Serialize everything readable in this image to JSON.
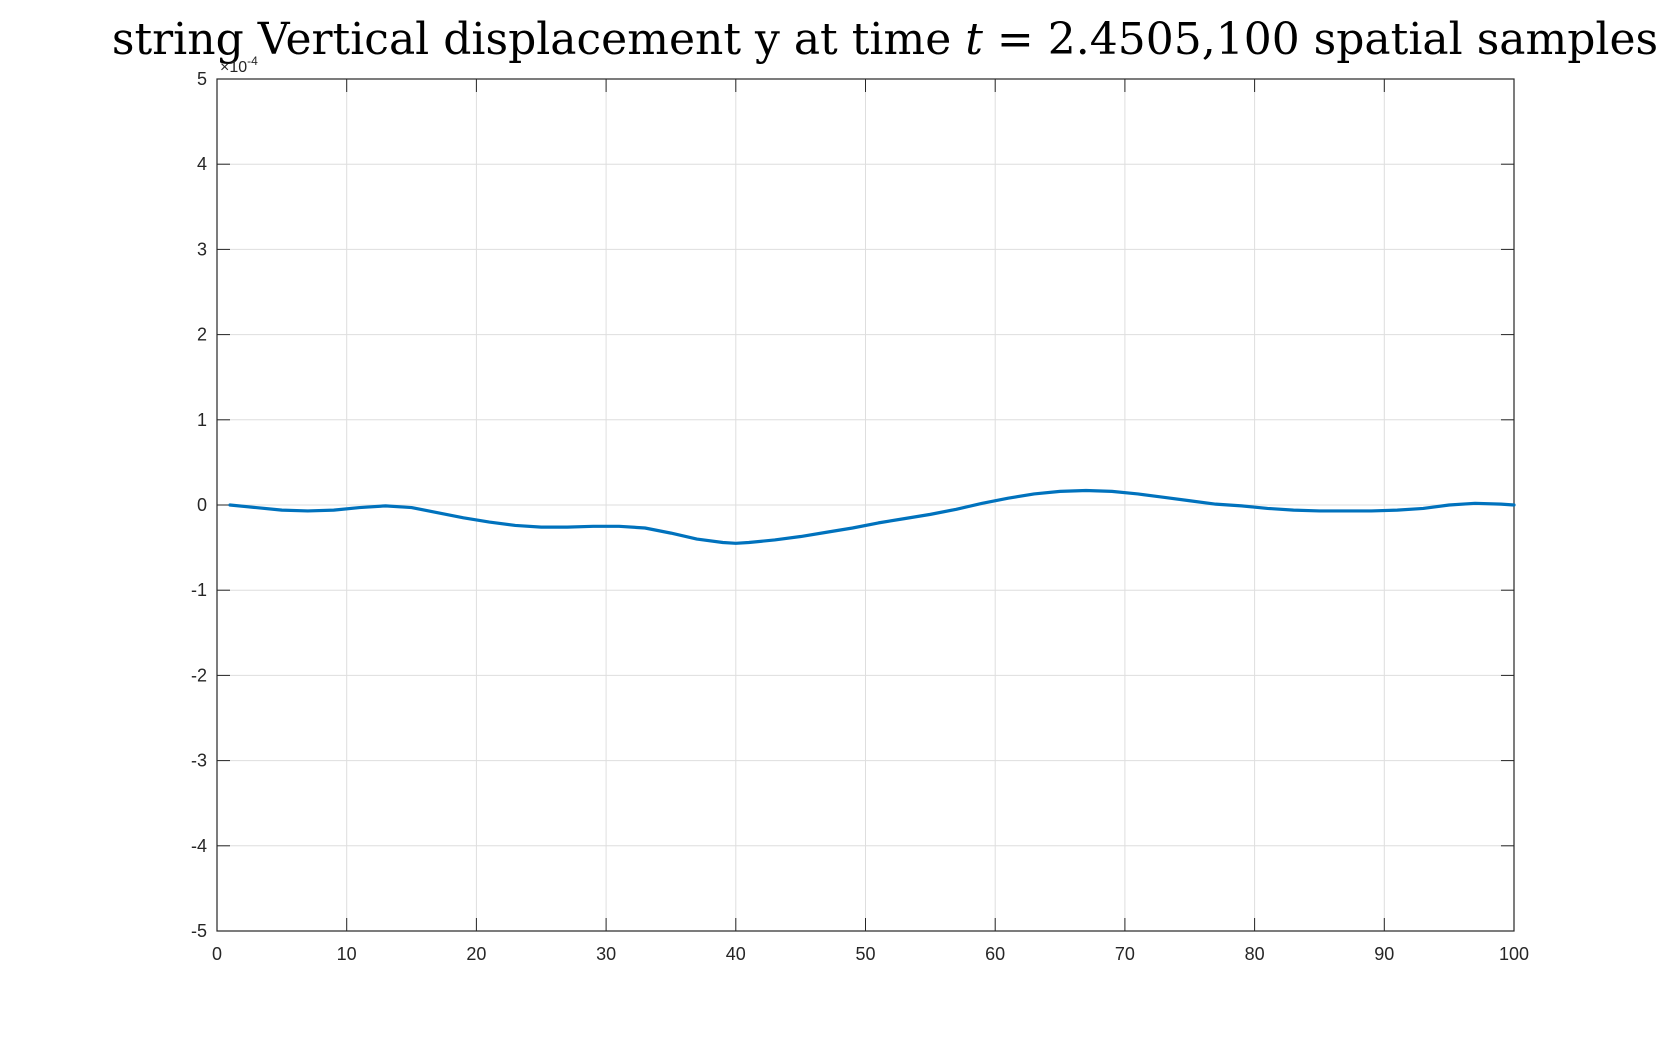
{
  "chart_data": {
    "type": "line",
    "title": "string Vertical displacement y at time t = 2.4505,100 spatial samples",
    "title_parts": {
      "prefix": "string Vertical displacement y at time ",
      "variable": "t",
      "equals": " = ",
      "suffix": "2.4505,100 spatial samples"
    },
    "xlabel": "",
    "ylabel": "",
    "xlim": [
      0,
      100
    ],
    "ylim": [
      -5,
      5
    ],
    "y_exponent_label": "×10",
    "y_exponent_power": "-4",
    "x_ticks": [
      0,
      10,
      20,
      30,
      40,
      50,
      60,
      70,
      80,
      90,
      100
    ],
    "x_tick_labels": [
      "0",
      "10",
      "20",
      "30",
      "40",
      "50",
      "60",
      "70",
      "80",
      "90",
      "100"
    ],
    "y_ticks": [
      5,
      4,
      3,
      2,
      1,
      0,
      -1,
      -2,
      -3,
      -4,
      -5
    ],
    "y_tick_labels": [
      "5",
      "4",
      "3",
      "2",
      "1",
      "0",
      "-1",
      "-2",
      "-3",
      "-4",
      "-5"
    ],
    "grid": true,
    "series": [
      {
        "color": "#0072BD",
        "x": [
          1,
          3,
          5,
          7,
          9,
          11,
          13,
          15,
          17,
          19,
          21,
          23,
          25,
          27,
          29,
          31,
          33,
          35,
          37,
          39,
          40,
          41,
          43,
          45,
          47,
          49,
          51,
          53,
          55,
          57,
          59,
          61,
          63,
          65,
          67,
          69,
          71,
          73,
          75,
          77,
          79,
          81,
          83,
          85,
          87,
          89,
          91,
          93,
          95,
          97,
          99,
          100
        ],
        "y": [
          0.0,
          -0.03,
          -0.06,
          -0.07,
          -0.06,
          -0.03,
          -0.01,
          -0.03,
          -0.09,
          -0.15,
          -0.2,
          -0.24,
          -0.26,
          -0.26,
          -0.25,
          -0.25,
          -0.27,
          -0.33,
          -0.4,
          -0.44,
          -0.45,
          -0.44,
          -0.41,
          -0.37,
          -0.32,
          -0.27,
          -0.21,
          -0.16,
          -0.11,
          -0.05,
          0.02,
          0.08,
          0.13,
          0.16,
          0.17,
          0.16,
          0.13,
          0.09,
          0.05,
          0.01,
          -0.01,
          -0.04,
          -0.06,
          -0.07,
          -0.07,
          -0.07,
          -0.06,
          -0.04,
          0.0,
          0.02,
          0.01,
          0.0
        ]
      }
    ]
  }
}
